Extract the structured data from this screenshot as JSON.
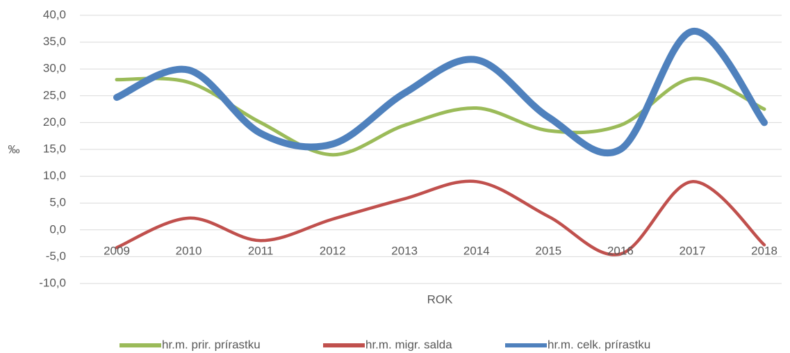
{
  "chart_data": {
    "type": "line",
    "smooth": true,
    "y_label": "‰",
    "x_label": "ROK",
    "categories": [
      "2009",
      "2010",
      "2011",
      "2012",
      "2013",
      "2014",
      "2015",
      "2016",
      "2017",
      "2018"
    ],
    "series": [
      {
        "name": "hr.m. prir. prírastku",
        "color": "#9bbb59",
        "values": [
          28.0,
          27.5,
          20.0,
          14.0,
          19.5,
          22.7,
          18.5,
          19.5,
          28.2,
          22.5
        ]
      },
      {
        "name": "hr.m. migr. salda",
        "color": "#c0504d",
        "values": [
          -3.3,
          2.2,
          -2.0,
          2.0,
          5.8,
          9.0,
          2.5,
          -4.5,
          9.0,
          -2.8
        ]
      },
      {
        "name": "hr.m. celk. prírastku",
        "color": "#4f81bd",
        "values": [
          24.7,
          29.8,
          18.0,
          16.0,
          25.5,
          31.7,
          21.0,
          15.0,
          37.0,
          20.0
        ]
      }
    ],
    "ylim": [
      -10,
      40
    ],
    "yticks": [
      {
        "value": -10,
        "label": "-10,0"
      },
      {
        "value": -5,
        "label": "-5,0"
      },
      {
        "value": 0,
        "label": "0,0"
      },
      {
        "value": 5,
        "label": "5,0"
      },
      {
        "value": 10,
        "label": "10,0"
      },
      {
        "value": 15,
        "label": "15,0"
      },
      {
        "value": 20,
        "label": "20,0"
      },
      {
        "value": 25,
        "label": "25,0"
      },
      {
        "value": 30,
        "label": "30,0"
      },
      {
        "value": 35,
        "label": "35,0"
      },
      {
        "value": 40,
        "label": "40,0"
      }
    ],
    "grid": true,
    "legend": "bottom"
  }
}
